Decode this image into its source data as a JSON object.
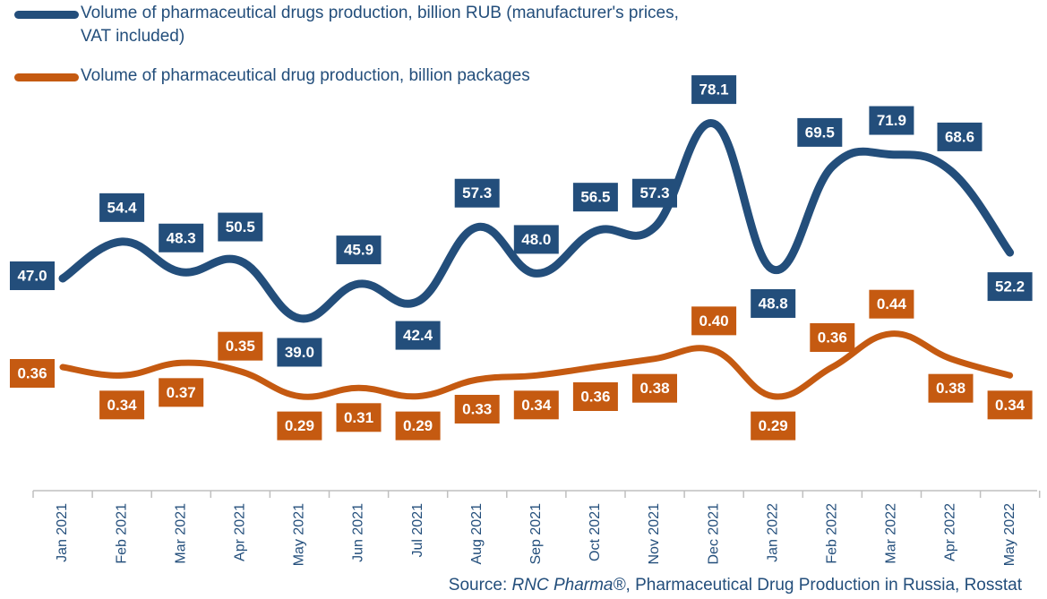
{
  "chart_data": {
    "type": "line",
    "categories": [
      "Jan 2021",
      "Feb 2021",
      "Mar 2021",
      "Apr 2021",
      "May 2021",
      "Jun 2021",
      "Jul 2021",
      "Aug 2021",
      "Sep 2021",
      "Oct 2021",
      "Nov 2021",
      "Dec 2021",
      "Jan 2022",
      "Feb 2022",
      "Mar 2022",
      "Apr 2022",
      "May 2022"
    ],
    "series": [
      {
        "name": "Volume of pharmaceutical drugs production, billion RUB (manufacturer's prices, VAT included)",
        "color": "#234e7b",
        "values": [
          47.0,
          54.4,
          48.3,
          50.5,
          39.0,
          45.9,
          42.4,
          57.3,
          48.0,
          56.5,
          57.3,
          78.1,
          48.8,
          69.5,
          71.9,
          68.6,
          52.2
        ],
        "labels": [
          "47.0",
          "54.4",
          "48.3",
          "50.5",
          "39.0",
          "45.9",
          "42.4",
          "57.3",
          "48.0",
          "56.5",
          "57.3",
          "78.1",
          "48.8",
          "69.5",
          "71.9",
          "68.6",
          "52.2"
        ]
      },
      {
        "name": "Volume of pharmaceutical drug production, billion packages",
        "color": "#c55a11",
        "values": [
          0.36,
          0.34,
          0.37,
          0.35,
          0.29,
          0.31,
          0.29,
          0.33,
          0.34,
          0.36,
          0.38,
          0.4,
          0.29,
          0.36,
          0.44,
          0.38,
          0.34
        ],
        "labels": [
          "0.36",
          "0.34",
          "0.37",
          "0.35",
          "0.29",
          "0.31",
          "0.29",
          "0.33",
          "0.34",
          "0.36",
          "0.38",
          "0.40",
          "0.29",
          "0.36",
          "0.44",
          "0.38",
          "0.34"
        ]
      }
    ]
  },
  "source": {
    "prefix": "Source: ",
    "brand": "RNC Pharma®",
    "suffix": ", Pharmaceutical Drug Production in Russia, Rosstat"
  }
}
